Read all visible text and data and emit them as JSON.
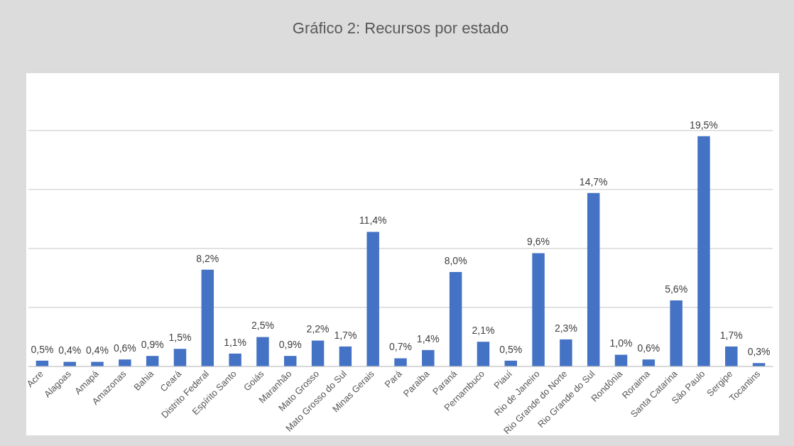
{
  "chart_data": {
    "type": "bar",
    "title": "Gráfico 2: Recursos por estado",
    "categories": [
      "Acre",
      "Alagoas",
      "Amapá",
      "Amazonas",
      "Bahia",
      "Ceará",
      "Distrito Federal",
      "Espírito Santo",
      "Goiás",
      "Maranhão",
      "Mato Grosso",
      "Mato Grosso do Sul",
      "Minas Gerais",
      "Pará",
      "Paraíba",
      "Paraná",
      "Pernambuco",
      "Piauí",
      "Rio de Janeiro",
      "Rio Grande do Norte",
      "Rio Grande do Sul",
      "Rondônia",
      "Roraima",
      "Santa Catarina",
      "São Paulo",
      "Sergipe",
      "Tocantins"
    ],
    "values": [
      0.5,
      0.4,
      0.4,
      0.6,
      0.9,
      1.5,
      8.2,
      1.1,
      2.5,
      0.9,
      2.2,
      1.7,
      11.4,
      0.7,
      1.4,
      8.0,
      2.1,
      0.5,
      9.6,
      2.3,
      14.7,
      1.0,
      0.6,
      5.6,
      19.5,
      1.7,
      0.3
    ],
    "value_labels": [
      "0,5%",
      "0,4%",
      "0,4%",
      "0,6%",
      "0,9%",
      "1,5%",
      "8,2%",
      "1,1%",
      "2,5%",
      "0,9%",
      "2,2%",
      "1,7%",
      "11,4%",
      "0,7%",
      "1,4%",
      "8,0%",
      "2,1%",
      "0,5%",
      "9,6%",
      "2,3%",
      "14,7%",
      "1,0%",
      "0,6%",
      "5,6%",
      "19,5%",
      "1,7%",
      "0,3%"
    ],
    "color": "#4472c4",
    "ylim": [
      0,
      25
    ],
    "yticks": [
      {
        "value": 0,
        "label": null
      },
      {
        "value": 5,
        "label": null
      },
      {
        "value": 10,
        "label": null
      },
      {
        "value": 15,
        "label": null
      },
      {
        "value": 20,
        "label": null
      },
      {
        "value": 25,
        "label": null
      }
    ],
    "grid": "y",
    "tick_labels": "x",
    "legend": false
  }
}
